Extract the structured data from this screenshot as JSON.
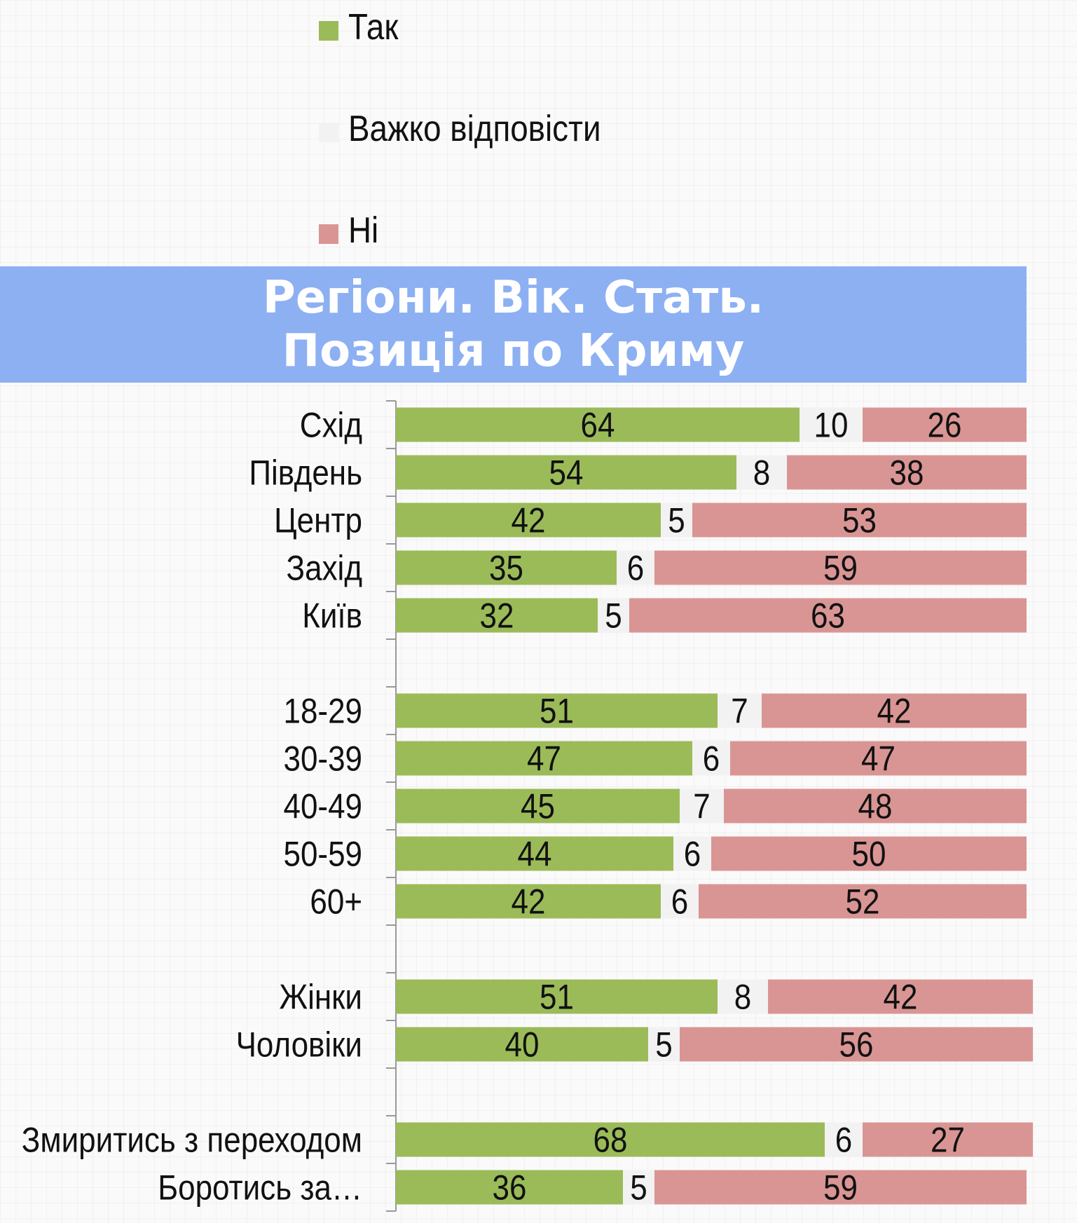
{
  "legend": {
    "items": [
      {
        "label": "Так",
        "color": "#9bbb59"
      },
      {
        "label": "Важко відповісти",
        "color": "#f2f2f2"
      },
      {
        "label": "Ні",
        "color": "#d99594"
      }
    ]
  },
  "banner": {
    "line1": "Регіони. Вік. Стать.",
    "line2": "Позиція по Криму"
  },
  "chart_data": {
    "type": "bar",
    "orientation": "horizontal",
    "stacked": true,
    "categories": [
      "Схід",
      "Південь",
      "Центр",
      "Захід",
      "Київ",
      "",
      "18-29",
      "30-39",
      "40-49",
      "50-59",
      "60+",
      "",
      "Жінки",
      "Чоловіки",
      "",
      "Змиритись з переходом",
      "Боротись за…"
    ],
    "series": [
      {
        "name": "Так",
        "color": "#9bbb59",
        "values": [
          64,
          54,
          42,
          35,
          32,
          null,
          51,
          47,
          45,
          44,
          42,
          null,
          51,
          40,
          null,
          68,
          36
        ]
      },
      {
        "name": "Важко відповісти",
        "color": "#f2f2f2",
        "values": [
          10,
          8,
          5,
          6,
          5,
          null,
          7,
          6,
          7,
          6,
          6,
          null,
          8,
          5,
          null,
          6,
          5
        ]
      },
      {
        "name": "Ні",
        "color": "#d99594",
        "values": [
          26,
          38,
          53,
          59,
          63,
          null,
          42,
          47,
          48,
          50,
          52,
          null,
          42,
          56,
          null,
          27,
          59
        ]
      }
    ],
    "xlim": [
      0,
      100
    ],
    "legend_position": "top",
    "data_labels": true,
    "grid": false
  }
}
